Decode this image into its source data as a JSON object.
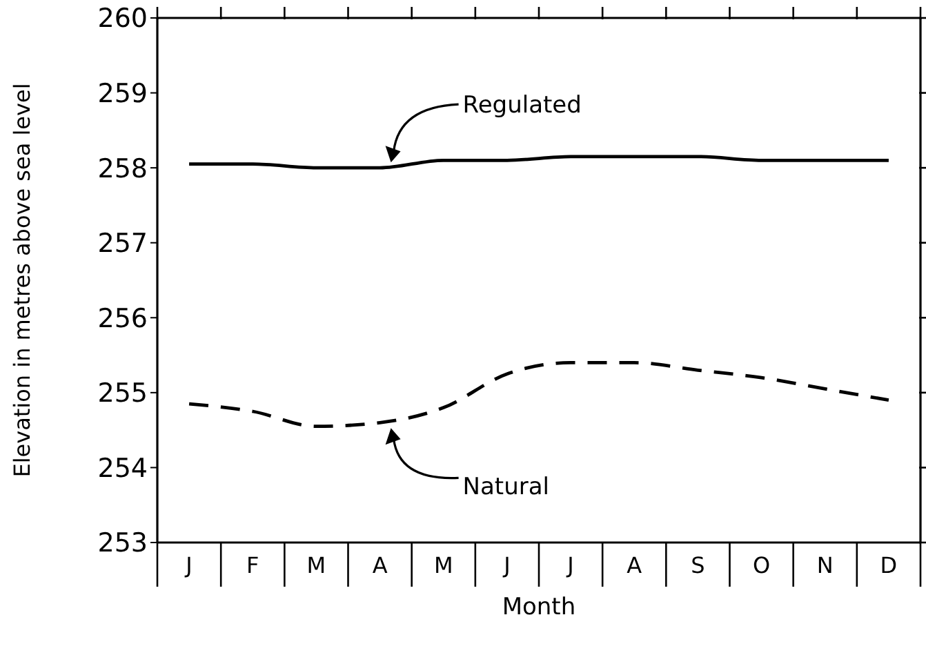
{
  "chart_data": {
    "type": "line",
    "xlabel": "Month",
    "ylabel": "Elevation in metres above sea level",
    "ylim": [
      253,
      260
    ],
    "yticks": [
      253,
      254,
      255,
      256,
      257,
      258,
      259,
      260
    ],
    "categories": [
      "J",
      "F",
      "M",
      "A",
      "M",
      "J",
      "J",
      "A",
      "S",
      "O",
      "N",
      "D"
    ],
    "marker": "none",
    "series": [
      {
        "name": "Regulated",
        "color": "#000000",
        "line_style": "solid",
        "values": [
          258.05,
          258.05,
          258.0,
          258.0,
          258.1,
          258.1,
          258.15,
          258.15,
          258.15,
          258.1,
          258.1,
          258.1
        ]
      },
      {
        "name": "Natural",
        "color": "#000000",
        "line_style": "dashed",
        "values": [
          254.85,
          254.75,
          254.55,
          254.6,
          254.8,
          255.25,
          255.4,
          255.4,
          255.3,
          255.2,
          255.05,
          254.9
        ]
      }
    ]
  }
}
